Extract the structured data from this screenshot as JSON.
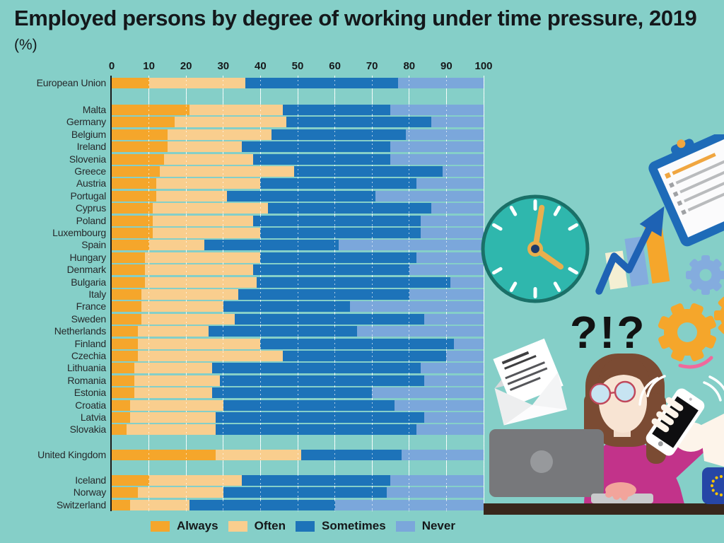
{
  "title": "Employed persons by degree of working under time pressure, 2019",
  "subtitle": "(%)",
  "axis": {
    "ticks": [
      "0",
      "10",
      "20",
      "30",
      "40",
      "50",
      "60",
      "70",
      "80",
      "90",
      "100"
    ]
  },
  "legend": {
    "items": [
      {
        "label": "Always",
        "color": "#F5A62B"
      },
      {
        "label": "Often",
        "color": "#F9CE8E"
      },
      {
        "label": "Sometimes",
        "color": "#1D73B9"
      },
      {
        "label": "Never",
        "color": "#7BA7DB"
      }
    ]
  },
  "chart_data": {
    "type": "bar",
    "stacked": true,
    "orientation": "horizontal",
    "title": "Employed persons by degree of working under time pressure, 2019",
    "xlabel": "(%)",
    "xlim": [
      0,
      100
    ],
    "grid": true,
    "series_names": [
      "Always",
      "Often",
      "Sometimes",
      "Never"
    ],
    "colors": {
      "Always": "#F5A62B",
      "Often": "#F9CE8E",
      "Sometimes": "#1D73B9",
      "Never": "#7BA7DB"
    },
    "groups": [
      {
        "name": "eu-aggregate",
        "rows": [
          {
            "label": "European Union",
            "values": [
              10,
              26,
              41,
              23
            ]
          }
        ]
      },
      {
        "name": "member-states",
        "rows": [
          {
            "label": "Malta",
            "values": [
              21,
              25,
              29,
              25
            ]
          },
          {
            "label": "Germany",
            "values": [
              17,
              30,
              39,
              14
            ]
          },
          {
            "label": "Belgium",
            "values": [
              15,
              28,
              36,
              21
            ]
          },
          {
            "label": "Ireland",
            "values": [
              15,
              20,
              40,
              25
            ]
          },
          {
            "label": "Slovenia",
            "values": [
              14,
              24,
              37,
              25
            ]
          },
          {
            "label": "Greece",
            "values": [
              13,
              36,
              40,
              11
            ]
          },
          {
            "label": "Austria",
            "values": [
              12,
              28,
              42,
              18
            ]
          },
          {
            "label": "Portugal",
            "values": [
              12,
              19,
              40,
              29
            ]
          },
          {
            "label": "Cyprus",
            "values": [
              11,
              31,
              44,
              14
            ]
          },
          {
            "label": "Poland",
            "values": [
              11,
              27,
              45,
              17
            ]
          },
          {
            "label": "Luxembourg",
            "values": [
              11,
              29,
              43,
              17
            ]
          },
          {
            "label": "Spain",
            "values": [
              10,
              15,
              36,
              39
            ]
          },
          {
            "label": "Hungary",
            "values": [
              9,
              31,
              42,
              18
            ]
          },
          {
            "label": "Denmark",
            "values": [
              9,
              29,
              42,
              20
            ]
          },
          {
            "label": "Bulgaria",
            "values": [
              9,
              30,
              52,
              9
            ]
          },
          {
            "label": "Italy",
            "values": [
              8,
              26,
              46,
              20
            ]
          },
          {
            "label": "France",
            "values": [
              8,
              22,
              34,
              36
            ]
          },
          {
            "label": "Sweden",
            "values": [
              8,
              25,
              51,
              16
            ]
          },
          {
            "label": "Netherlands",
            "values": [
              7,
              19,
              40,
              34
            ]
          },
          {
            "label": "Finland",
            "values": [
              7,
              33,
              52,
              8
            ]
          },
          {
            "label": "Czechia",
            "values": [
              7,
              39,
              44,
              10
            ]
          },
          {
            "label": "Lithuania",
            "values": [
              6,
              21,
              56,
              17
            ]
          },
          {
            "label": "Romania",
            "values": [
              6,
              23,
              55,
              16
            ]
          },
          {
            "label": "Estonia",
            "values": [
              6,
              21,
              43,
              30
            ]
          },
          {
            "label": "Croatia",
            "values": [
              5,
              25,
              46,
              24
            ]
          },
          {
            "label": "Latvia",
            "values": [
              5,
              23,
              56,
              16
            ]
          },
          {
            "label": "Slovakia",
            "values": [
              4,
              24,
              54,
              18
            ]
          }
        ]
      },
      {
        "name": "united-kingdom",
        "rows": [
          {
            "label": "United Kingdom",
            "values": [
              28,
              23,
              27,
              22
            ]
          }
        ]
      },
      {
        "name": "efta",
        "rows": [
          {
            "label": "Iceland",
            "values": [
              10,
              25,
              40,
              25
            ]
          },
          {
            "label": "Norway",
            "values": [
              7,
              23,
              44,
              26
            ]
          },
          {
            "label": "Switzerland",
            "values": [
              5,
              16,
              39,
              40
            ]
          }
        ]
      }
    ]
  },
  "decorations": {
    "question_text": "?!?",
    "icons": [
      "clock-icon",
      "clipboard-icon",
      "growth-chart-icon",
      "gear-icon",
      "envelope-icon",
      "woman-at-laptop-illustration",
      "phone-in-hand-icon",
      "eu-flag-icon"
    ]
  },
  "palette": {
    "background": "#85CFC8",
    "axis_line": "#1A1A1A",
    "gridline": "#FFFFFF",
    "desk": "#38271C",
    "clock_face": "#2FB7AD",
    "clock_hands": "#E9AF4D",
    "magenta_top": "#C2338A",
    "eu_flag_blue": "#2646A6",
    "eu_flag_stars": "#F8C300"
  }
}
